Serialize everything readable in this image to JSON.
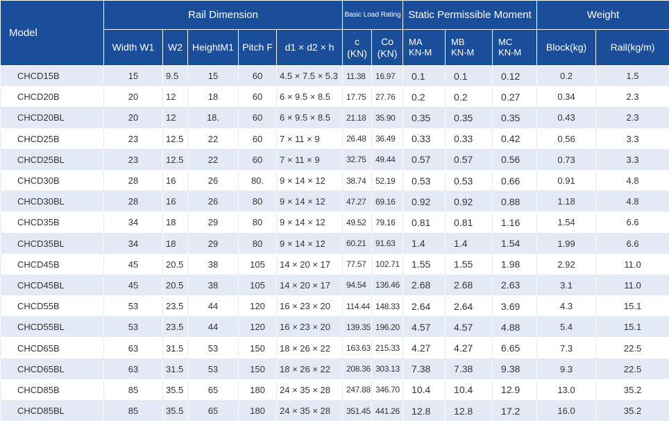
{
  "headers": {
    "model": "Model",
    "rail_dimension": "Rail Dimension",
    "basic_load_rating": "Basic Load Rating",
    "static_moment": "Static Permissible Moment",
    "weight": "Weight",
    "width_w1": "Width W1",
    "w2": "W2",
    "height_m1": "HeightM1",
    "pitch_f": "Pitch F",
    "d1d2h": "d1 × d2 × h",
    "c_line1": "c",
    "c_line2": "(KN)",
    "co_line1": "Co",
    "co_line2": "(KN)",
    "ma_line1": "MA",
    "ma_line2": "KN-M",
    "mb_line1": "MB",
    "mb_line2": "KN-M",
    "mc_line1": "MC",
    "mc_line2": "KN-M",
    "block": "Block(kg)",
    "rail": "Rail(kg/m)"
  },
  "rows": [
    {
      "model": "CHCD15B",
      "w1": "15",
      "w2": "9.5",
      "m1": "15",
      "f": "60",
      "d": "4.5 × 7.5 × 5.3",
      "c": "11.38",
      "co": "16.97",
      "ma": "0.1",
      "mb": "0.1",
      "mc": "0.12",
      "block": "0.2",
      "rail": "1.5"
    },
    {
      "model": "CHCD20B",
      "w1": "20",
      "w2": "12",
      "m1": "18",
      "f": "60",
      "d": "6 × 9.5 × 8.5",
      "c": "17.75",
      "co": "27.76",
      "ma": "0.2",
      "mb": "0.2",
      "mc": "0.27",
      "block": "0.34",
      "rail": "2.3"
    },
    {
      "model": "CHCD20BL",
      "w1": "20",
      "w2": "12",
      "m1": "18.",
      "f": "60",
      "d": "6 × 9.5 × 8.5",
      "c": "21.18",
      "co": "35.90",
      "ma": "0.35",
      "mb": "0.35",
      "mc": "0.35",
      "block": "0.43",
      "rail": "2.3"
    },
    {
      "model": "CHCD25B",
      "w1": "23",
      "w2": "12.5",
      "m1": "22",
      "f": "60",
      "d": "7 × 11 × 9",
      "c": "26.48",
      "co": "36.49",
      "ma": "0.33",
      "mb": "0.33",
      "mc": "0.42",
      "block": "0.56",
      "rail": "3.3"
    },
    {
      "model": "CHCD25BL",
      "w1": "23",
      "w2": "12.5",
      "m1": "22",
      "f": "60",
      "d": "7 × 11 × 9",
      "c": "32.75",
      "co": "49.44",
      "ma": "0.57",
      "mb": "0.57",
      "mc": "0.56",
      "block": "0.73",
      "rail": "3.3"
    },
    {
      "model": "CHCD30B",
      "w1": "28",
      "w2": "16",
      "m1": "26",
      "f": "80.",
      "d": "9 × 14 × 12",
      "c": "38.74",
      "co": "52.19",
      "ma": "0.53",
      "mb": "0.53",
      "mc": "0.66",
      "block": "0.91",
      "rail": "4.8"
    },
    {
      "model": "CHCD30BL",
      "w1": "28",
      "w2": "16",
      "m1": "26",
      "f": "80",
      "d": "9 × 14 × 12",
      "c": "47.27",
      "co": "69.16",
      "ma": "0.92",
      "mb": "0.92",
      "mc": "0.88",
      "block": "1.18",
      "rail": "4.8"
    },
    {
      "model": "CHCD35B",
      "w1": "34",
      "w2": "18",
      "m1": "29",
      "f": "80",
      "d": "9 × 14 × 12",
      "c": "49.52",
      "co": "79.16",
      "ma": "0.81",
      "mb": "0.81",
      "mc": "1.16",
      "block": "1.54",
      "rail": "6.6"
    },
    {
      "model": "CHCD35BL",
      "w1": "34",
      "w2": "18",
      "m1": "29",
      "f": "80",
      "d": "9 × 14 × 12",
      "c": "60.21",
      "co": "91.63",
      "ma": "1.4",
      "mb": "1.4",
      "mc": "1.54",
      "block": "1.99",
      "rail": "6.6"
    },
    {
      "model": "CHCD45B",
      "w1": "45",
      "w2": "20.5",
      "m1": "38",
      "f": "105",
      "d": "14 × 20 × 17",
      "c": "77.57",
      "co": "102.71",
      "ma": "1.55",
      "mb": "1.55",
      "mc": "1.98",
      "block": "2.92",
      "rail": "11.0"
    },
    {
      "model": "CHCD45BL",
      "w1": "45",
      "w2": "20.5",
      "m1": "38",
      "f": "105",
      "d": "14 × 20 × 17",
      "c": "94.54",
      "co": "136.46",
      "ma": "2.68",
      "mb": "2.68",
      "mc": "2.63",
      "block": "3.1",
      "rail": "11.0"
    },
    {
      "model": "CHCD55B",
      "w1": "53",
      "w2": "23.5",
      "m1": "44",
      "f": "120",
      "d": "16 × 23 × 20",
      "c": "114.44",
      "co": "148.33",
      "ma": "2.64",
      "mb": "2.64",
      "mc": "3.69",
      "block": "4.3",
      "rail": "15.1"
    },
    {
      "model": "CHCD55BL",
      "w1": "53",
      "w2": "23.5",
      "m1": "44",
      "f": "120",
      "d": "16 × 23 × 20",
      "c": "139.35",
      "co": "196.20",
      "ma": "4.57",
      "mb": "4.57",
      "mc": "4.88",
      "block": "5.4",
      "rail": "15.1"
    },
    {
      "model": "CHCD65B",
      "w1": "63",
      "w2": "31.5",
      "m1": "53",
      "f": "150",
      "d": "18 × 26 × 22",
      "c": "163.63",
      "co": "215.33",
      "ma": "4.27",
      "mb": "4.27",
      "mc": "6.65",
      "block": "7.3",
      "rail": "22.5"
    },
    {
      "model": "CHCD65BL",
      "w1": "63",
      "w2": "31.5",
      "m1": "53",
      "f": "150",
      "d": "18 × 26 × 22",
      "c": "208.36",
      "co": "303.13",
      "ma": "7.38",
      "mb": "7.38",
      "mc": "9.38",
      "block": "9.3",
      "rail": "22.5"
    },
    {
      "model": "CHCD85B",
      "w1": "85",
      "w2": "35.5",
      "m1": "65",
      "f": "180",
      "d": "24 × 35 × 28",
      "c": "247.88",
      "co": "346.70",
      "ma": "10.4",
      "mb": "10.4",
      "mc": "12.9",
      "block": "13.0",
      "rail": "35.2"
    },
    {
      "model": "CHCD85BL",
      "w1": "85",
      "w2": "35.5",
      "m1": "65",
      "f": "180",
      "d": "24 × 35 × 28",
      "c": "351.45",
      "co": "441.26",
      "ma": "12.8",
      "mb": "12.8",
      "mc": "17.2",
      "block": "16.0",
      "rail": "35.2"
    }
  ]
}
